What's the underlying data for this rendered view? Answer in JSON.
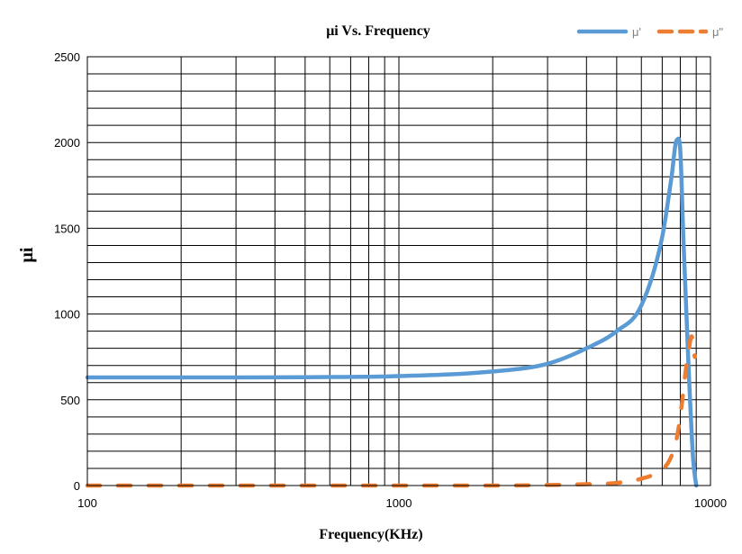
{
  "chart_data": {
    "type": "line",
    "title": "μi Vs. Frequency",
    "xlabel": "Frequency(KHz)",
    "ylabel": "μi",
    "x_scale": "log",
    "xlim": [
      100,
      10000
    ],
    "ylim": [
      0,
      2500
    ],
    "x_ticks": [
      "100",
      "1000",
      "10000"
    ],
    "y_ticks": [
      "0",
      "500",
      "1000",
      "1500",
      "2000",
      "2500"
    ],
    "grid": true,
    "legend_position": "top-right",
    "series": [
      {
        "name": "μ'",
        "color": "#5b9bd5",
        "dash": "solid",
        "x": [
          100,
          200,
          500,
          1000,
          2000,
          3000,
          4000,
          5000,
          6000,
          7000,
          7500,
          7800,
          8000,
          8200,
          8500,
          8800,
          9000
        ],
        "y": [
          630,
          630,
          632,
          638,
          665,
          710,
          800,
          900,
          1050,
          1450,
          1800,
          2015,
          1950,
          1400,
          700,
          150,
          0
        ]
      },
      {
        "name": "μ\"",
        "color": "#ed7d31",
        "dash": "dashed",
        "x": [
          100,
          500,
          1000,
          2000,
          3000,
          4000,
          5000,
          6000,
          6800,
          7400,
          7800,
          8100,
          8300,
          8500,
          8700,
          8900
        ],
        "y": [
          0,
          0,
          0,
          0,
          3,
          8,
          15,
          40,
          80,
          150,
          280,
          480,
          650,
          780,
          870,
          750
        ]
      }
    ]
  }
}
